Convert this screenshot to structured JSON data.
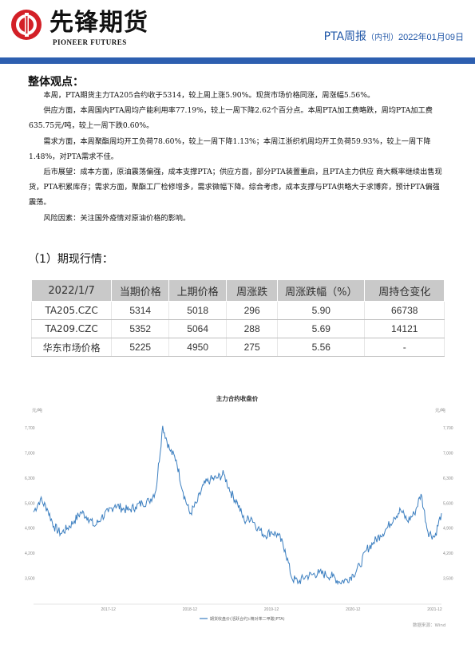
{
  "header": {
    "logo_cn": "先锋期货",
    "logo_en": "PIONEER FUTURES",
    "title_main": "PTA周报",
    "title_sub": "（内刊）",
    "title_date": "2022年01月09日",
    "accent_color": "#2d5fb0",
    "logo_color": "#d32027"
  },
  "summary": {
    "heading": "整体观点：",
    "paragraphs": [
      "本周，PTA期货主力TA205合约收于5314，较上周上涨5.90%。现货市场价格同涨，周涨幅5.56%。",
      "供应方面，本周国内PTA周均产能利用率77.19%，较上一周下降2.62个百分点。本周PTA加工费略跌，周均PTA加工费635.75元/吨，较上一周下跌0.60%。",
      "需求方面，本周聚酯周均开工负荷78.60%，较上一周下降1.13%；本周江浙织机周均开工负荷59.93%，较上一周下降1.48%，对PTA需求不佳。",
      "后市展望：成本方面，原油震荡偏强，成本支撑PTA；供应方面，部分PTA装置重启，且PTA主力供应 商大概率继续出售现货，PTA积累库存；需求方面，聚酯工厂检修增多，需求微幅下降。综合考虑，成本支撑与PTA供略大于求博弈，预计PTA偏强震荡。",
      "风险因素：关注国外疫情对原油价格的影响。"
    ]
  },
  "section": {
    "heading": "（1）期现行情："
  },
  "table": {
    "headers": [
      "2022/1/7",
      "当期价格",
      "上期价格",
      "周涨跌",
      "周涨跌幅（%）",
      "周持仓变化"
    ],
    "rows": [
      [
        "TA205.CZC",
        "5314",
        "5018",
        "296",
        "5.90",
        "66738"
      ],
      [
        "TA209.CZC",
        "5352",
        "5064",
        "288",
        "5.69",
        "14121"
      ],
      [
        "华东市场价格",
        "5225",
        "4950",
        "275",
        "5.56",
        "-"
      ]
    ]
  },
  "chart_data": {
    "type": "line",
    "title": "主力合约收盘价",
    "ylabel_left": "元/吨",
    "ylabel_right": "元/吨",
    "yticks": [
      "3,500",
      "4,200",
      "4,900",
      "5,600",
      "6,300",
      "7,000",
      "7,700"
    ],
    "ylim": [
      2800,
      8100
    ],
    "xticks": [
      "2017-12",
      "2018-12",
      "2019-12",
      "2020-12",
      "2021-12"
    ],
    "legend": "期货收盘价(活跃合约):精对苯二甲酸(PTA)",
    "source": "数据来源：Wind",
    "line_color": "#3c7fc0",
    "series": [
      {
        "name": "期货收盘价(活跃合约):精对苯二甲酸(PTA)",
        "x": [
          "2017-01",
          "2017-02",
          "2017-03",
          "2017-04",
          "2017-05",
          "2017-06",
          "2017-07",
          "2017-08",
          "2017-09",
          "2017-10",
          "2017-11",
          "2017-12",
          "2018-01",
          "2018-02",
          "2018-03",
          "2018-04",
          "2018-05",
          "2018-06",
          "2018-07",
          "2018-08",
          "2018-09",
          "2018-10",
          "2018-11",
          "2018-12",
          "2019-01",
          "2019-02",
          "2019-03",
          "2019-04",
          "2019-05",
          "2019-06",
          "2019-07",
          "2019-08",
          "2019-09",
          "2019-10",
          "2019-11",
          "2019-12",
          "2020-01",
          "2020-02",
          "2020-03",
          "2020-04",
          "2020-05",
          "2020-06",
          "2020-07",
          "2020-08",
          "2020-09",
          "2020-10",
          "2020-11",
          "2020-12",
          "2021-01",
          "2021-02",
          "2021-03",
          "2021-04",
          "2021-05",
          "2021-06",
          "2021-07",
          "2021-08",
          "2021-09",
          "2021-10",
          "2021-11",
          "2021-12",
          "2022-01"
        ],
        "values": [
          5350,
          5700,
          5450,
          4950,
          4750,
          4900,
          5100,
          5350,
          5200,
          4950,
          5200,
          5350,
          5550,
          5450,
          5400,
          5500,
          5600,
          5650,
          5950,
          7750,
          7100,
          6800,
          5900,
          5300,
          5600,
          6100,
          6250,
          6300,
          6400,
          5900,
          5600,
          5100,
          5200,
          4900,
          4700,
          4800,
          4700,
          4300,
          3500,
          3400,
          3550,
          3600,
          3650,
          3600,
          3550,
          3400,
          3450,
          3600,
          3850,
          4300,
          4500,
          4700,
          4900,
          5200,
          5400,
          5100,
          5300,
          5850,
          4800,
          4650,
          5314
        ]
      }
    ]
  }
}
